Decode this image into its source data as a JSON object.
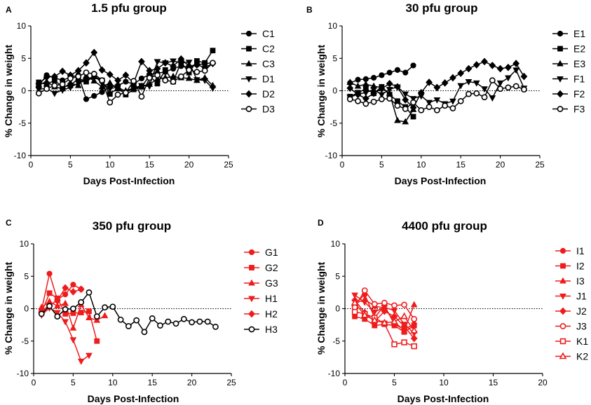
{
  "chart_data": [
    {
      "type": "line",
      "panel": "A",
      "title": "1.5 pfu group",
      "xlabel": "Days Post-Infection",
      "ylabel": "% Change in weight",
      "xlim": [
        0,
        25
      ],
      "ylim": [
        -10,
        10
      ],
      "xticks": [
        "0",
        "5",
        "10",
        "15",
        "20",
        "25"
      ],
      "yticks": [
        "-10",
        "-5",
        "0",
        "5",
        "10"
      ],
      "series": [
        {
          "name": "C1",
          "color": "#000000",
          "marker": "circle-filled",
          "x": [
            1,
            2,
            3,
            4,
            5,
            6,
            7,
            8,
            9,
            10,
            11,
            12,
            13,
            14,
            15,
            16,
            17,
            18,
            19,
            20,
            21,
            22,
            23
          ],
          "y": [
            0.8,
            2.4,
            2.0,
            1.6,
            2.1,
            2.4,
            -1.3,
            -0.8,
            -0.2,
            0.6,
            0.8,
            1.4,
            1.0,
            1.9,
            2.5,
            2.7,
            2.9,
            3.4,
            3.8,
            3.6,
            4.0,
            4.2,
            4.3
          ]
        },
        {
          "name": "C2",
          "color": "#000000",
          "marker": "square-filled",
          "x": [
            1,
            2,
            3,
            4,
            5,
            6,
            7,
            8,
            9,
            10,
            11,
            12,
            13,
            14,
            15,
            16,
            17,
            18,
            19,
            20,
            21,
            22,
            23
          ],
          "y": [
            1.3,
            1.0,
            1.6,
            0.6,
            0.8,
            1.9,
            1.4,
            2.2,
            1.6,
            -0.5,
            0.4,
            -0.6,
            0.2,
            0.6,
            2.3,
            1.1,
            3.2,
            1.4,
            4.4,
            2.8,
            4.6,
            4.3,
            6.2
          ]
        },
        {
          "name": "C3",
          "color": "#000000",
          "marker": "triangle-up-filled",
          "x": [
            1,
            2,
            3,
            4,
            5,
            6,
            7,
            8,
            9,
            10,
            11,
            12,
            13,
            14,
            15,
            16,
            17,
            18,
            19,
            20,
            21,
            22,
            23
          ],
          "y": [
            0.9,
            1.4,
            0.6,
            0.3,
            1.2,
            0.8,
            2.3,
            1.5,
            0.6,
            1.2,
            0.3,
            0.0,
            0.4,
            0.7,
            1.0,
            1.8,
            2.0,
            2.2,
            2.0,
            1.9,
            1.6,
            2.0,
            0.8
          ]
        },
        {
          "name": "D1",
          "color": "#000000",
          "marker": "triangle-down-filled",
          "x": [
            1,
            2,
            3,
            4,
            5,
            6,
            7,
            8,
            9,
            10,
            11,
            12,
            13,
            14,
            15,
            16,
            17,
            18,
            19,
            20,
            21,
            22,
            23
          ],
          "y": [
            0.2,
            0.4,
            -0.4,
            0.1,
            0.5,
            1.2,
            1.6,
            2.3,
            1.2,
            0.3,
            0.6,
            -0.2,
            0.4,
            0.8,
            0.7,
            4.5,
            4.3,
            4.6,
            4.3,
            4.4,
            1.7,
            1.6,
            0.4
          ]
        },
        {
          "name": "D2",
          "color": "#000000",
          "marker": "diamond-filled",
          "x": [
            1,
            2,
            3,
            4,
            5,
            6,
            7,
            8,
            9,
            10,
            11,
            12,
            13,
            14,
            15,
            16,
            17,
            18,
            19,
            20,
            21,
            22,
            23
          ],
          "y": [
            1.1,
            2.1,
            2.2,
            3.0,
            2.4,
            3.1,
            4.3,
            5.9,
            3.2,
            2.5,
            1.6,
            2.4,
            1.2,
            4.5,
            3.1,
            3.4,
            4.3,
            3.8,
            4.9,
            3.8,
            4.0,
            3.6,
            4.2
          ]
        },
        {
          "name": "D3",
          "color": "#000000",
          "marker": "circle-open",
          "x": [
            1,
            2,
            3,
            4,
            5,
            6,
            7,
            8,
            9,
            10,
            11,
            12,
            13,
            14,
            15,
            16,
            17,
            18,
            19,
            20,
            21,
            22,
            23
          ],
          "y": [
            -0.4,
            0.3,
            0.8,
            1.0,
            1.9,
            2.2,
            2.8,
            2.6,
            1.6,
            -1.8,
            -0.6,
            -0.3,
            1.5,
            -0.9,
            2.0,
            2.4,
            1.6,
            1.4,
            2.2,
            3.2,
            2.9,
            3.1,
            4.3
          ]
        }
      ]
    },
    {
      "type": "line",
      "panel": "B",
      "title": "30 pfu group",
      "xlabel": "Days Post-Infection",
      "ylabel": "% Change in weight",
      "xlim": [
        0,
        25
      ],
      "ylim": [
        -10,
        10
      ],
      "xticks": [
        "0",
        "5",
        "10",
        "15",
        "20",
        "25"
      ],
      "yticks": [
        "-10",
        "-5",
        "0",
        "5",
        "10"
      ],
      "series": [
        {
          "name": "E1",
          "color": "#000000",
          "marker": "circle-filled",
          "x": [
            1,
            2,
            3,
            4,
            5,
            6,
            7,
            8,
            9
          ],
          "y": [
            1.2,
            1.7,
            1.8,
            2.0,
            2.4,
            2.8,
            3.2,
            2.8,
            3.9
          ]
        },
        {
          "name": "E2",
          "color": "#000000",
          "marker": "square-filled",
          "x": [
            1,
            2,
            3,
            4,
            5,
            6,
            7,
            8,
            9
          ],
          "y": [
            -0.9,
            -0.3,
            0.3,
            -0.4,
            0.6,
            -0.6,
            -1.6,
            -2.5,
            -4.0
          ]
        },
        {
          "name": "E3",
          "color": "#000000",
          "marker": "triangle-up-filled",
          "x": [
            1,
            2,
            3,
            4,
            5,
            6,
            7,
            8,
            9
          ],
          "y": [
            1.3,
            0.7,
            1.0,
            0.7,
            0.5,
            -0.4,
            -4.6,
            -4.8,
            -2.9
          ]
        },
        {
          "name": "F1",
          "color": "#000000",
          "marker": "triangle-down-filled",
          "x": [
            1,
            2,
            3,
            4,
            5,
            6,
            7,
            8,
            9,
            10,
            11,
            12,
            13,
            14,
            15,
            16,
            17,
            18,
            19,
            20,
            21,
            22,
            23
          ],
          "y": [
            -1.0,
            -0.5,
            -0.3,
            0.2,
            -0.6,
            0.2,
            0.6,
            -0.5,
            -1.2,
            -0.8,
            -1.8,
            -1.4,
            -2.0,
            -1.6,
            0.8,
            1.4,
            1.2,
            0.3,
            -1.1,
            1.2,
            2.0,
            3.2,
            0.4
          ]
        },
        {
          "name": "F2",
          "color": "#000000",
          "marker": "diamond-filled",
          "x": [
            1,
            2,
            3,
            4,
            5,
            6,
            7,
            8,
            9,
            10,
            11,
            12,
            13,
            14,
            15,
            16,
            17,
            18,
            19,
            20,
            21,
            22,
            23
          ],
          "y": [
            0.4,
            -0.6,
            -1.2,
            -0.4,
            0.3,
            1.1,
            0.6,
            -1.4,
            -2.6,
            -0.3,
            1.3,
            0.5,
            1.2,
            2.0,
            2.7,
            3.4,
            4.0,
            4.5,
            3.9,
            3.4,
            3.6,
            4.2,
            2.2
          ]
        },
        {
          "name": "F3",
          "color": "#000000",
          "marker": "circle-open",
          "x": [
            1,
            2,
            3,
            4,
            5,
            6,
            7,
            8,
            9,
            10,
            11,
            12,
            13,
            14,
            15,
            16,
            17,
            18,
            19,
            20,
            21,
            22,
            23
          ],
          "y": [
            -1.3,
            -1.6,
            -2.0,
            -1.7,
            -1.3,
            -1.2,
            -2.3,
            -2.8,
            -1.8,
            -3.0,
            -2.5,
            -3.0,
            -2.3,
            -2.7,
            -1.6,
            -0.5,
            -0.4,
            -1.0,
            1.6,
            0.3,
            0.5,
            0.7,
            0.2
          ]
        }
      ]
    },
    {
      "type": "line",
      "panel": "C",
      "title": "350 pfu group",
      "xlabel": "Days Post-Infection",
      "ylabel": "% Change in weight",
      "xlim": [
        0,
        25
      ],
      "ylim": [
        -10,
        10
      ],
      "xticks": [
        "0",
        "5",
        "10",
        "15",
        "20",
        "25"
      ],
      "yticks": [
        "-10",
        "-5",
        "0",
        "5",
        "10"
      ],
      "series": [
        {
          "name": "G1",
          "color": "#ee1c1c",
          "marker": "circle-filled",
          "x": [
            1,
            2,
            3,
            4,
            5,
            6
          ],
          "y": [
            -0.2,
            5.4,
            1.4,
            2.2,
            3.7,
            3.0
          ]
        },
        {
          "name": "G2",
          "color": "#ee1c1c",
          "marker": "square-filled",
          "x": [
            1,
            2,
            3,
            4,
            5,
            6,
            7,
            8
          ],
          "y": [
            -0.6,
            2.4,
            1.6,
            -0.8,
            -0.7,
            -0.6,
            -0.4,
            -5.0
          ]
        },
        {
          "name": "G3",
          "color": "#ee1c1c",
          "marker": "triangle-up-filled",
          "x": [
            1,
            2,
            3,
            4,
            5,
            6,
            7,
            8,
            9
          ],
          "y": [
            0.2,
            1.1,
            0.4,
            0.8,
            -3.0,
            0.6,
            -1.4,
            -1.8,
            -1.1
          ]
        },
        {
          "name": "H1",
          "color": "#ee1c1c",
          "marker": "triangle-down-filled",
          "x": [
            1,
            2,
            3,
            4,
            5,
            6,
            7
          ],
          "y": [
            -1.0,
            0.1,
            -0.6,
            -2.0,
            -4.8,
            -8.1,
            -7.2
          ]
        },
        {
          "name": "H2",
          "color": "#ee1c1c",
          "marker": "diamond-filled",
          "x": [
            1,
            2,
            3,
            4,
            5,
            6
          ],
          "y": [
            -0.5,
            0.6,
            1.2,
            3.2,
            2.6,
            3.0
          ]
        },
        {
          "name": "H3",
          "color": "#000000",
          "marker": "circle-open",
          "x": [
            1,
            2,
            3,
            4,
            5,
            6,
            7,
            8,
            9,
            10,
            11,
            12,
            13,
            14,
            15,
            16,
            17,
            18,
            19,
            20,
            21,
            22,
            23
          ],
          "y": [
            -0.8,
            0.4,
            -1.2,
            -0.1,
            0.0,
            1.0,
            2.5,
            -1.2,
            0.2,
            0.3,
            -1.7,
            -2.7,
            -1.8,
            -3.6,
            -1.5,
            -2.6,
            -2.0,
            -2.3,
            -1.6,
            -2.1,
            -2.0,
            -2.0,
            -2.8
          ]
        }
      ]
    },
    {
      "type": "line",
      "panel": "D",
      "title": "4400 pfu group",
      "xlabel": "Days Post-Infection",
      "ylabel": "% Change in weight",
      "xlim": [
        0,
        20
      ],
      "ylim": [
        -10,
        10
      ],
      "xticks": [
        "0",
        "5",
        "10",
        "15",
        "20"
      ],
      "yticks": [
        "-10",
        "-5",
        "0",
        "5",
        "10"
      ],
      "series": [
        {
          "name": "I1",
          "color": "#ee1c1c",
          "marker": "circle-filled",
          "x": [
            1,
            2,
            3,
            4,
            5,
            6,
            7
          ],
          "y": [
            0.6,
            2.2,
            -1.4,
            0.5,
            -2.4,
            -3.2,
            -2.4
          ]
        },
        {
          "name": "I2",
          "color": "#ee1c1c",
          "marker": "square-filled",
          "x": [
            1,
            2,
            3,
            4,
            5,
            6,
            7
          ],
          "y": [
            -1.2,
            -1.6,
            -2.6,
            -2.4,
            -2.6,
            -3.6,
            -2.6
          ]
        },
        {
          "name": "I3",
          "color": "#ee1c1c",
          "marker": "triangle-up-filled",
          "x": [
            1,
            2,
            3,
            4,
            5,
            6,
            7
          ],
          "y": [
            0.8,
            1.4,
            0.4,
            0.1,
            -2.0,
            -3.4,
            0.6
          ]
        },
        {
          "name": "J1",
          "color": "#ee1c1c",
          "marker": "triangle-down-filled",
          "x": [
            1,
            2,
            3,
            4,
            5,
            6,
            7
          ],
          "y": [
            2.1,
            1.0,
            -0.5,
            0.2,
            -0.3,
            -2.4,
            -3.8
          ]
        },
        {
          "name": "J2",
          "color": "#ee1c1c",
          "marker": "diamond-filled",
          "x": [
            1,
            2,
            3,
            4,
            5,
            6,
            7
          ],
          "y": [
            1.3,
            -0.6,
            -2.0,
            -0.4,
            -1.2,
            -2.7,
            -4.6
          ]
        },
        {
          "name": "J3",
          "color": "#ee1c1c",
          "marker": "circle-open",
          "x": [
            1,
            2,
            3,
            4,
            5,
            6,
            7
          ],
          "y": [
            0.2,
            2.8,
            0.7,
            0.9,
            0.5,
            0.6,
            -1.6
          ]
        },
        {
          "name": "K1",
          "color": "#ee1c1c",
          "marker": "square-open",
          "x": [
            1,
            2,
            3,
            4,
            5,
            6,
            7
          ],
          "y": [
            -0.5,
            -0.8,
            -1.4,
            -2.3,
            -5.5,
            -5.2,
            -5.8
          ]
        },
        {
          "name": "K2",
          "color": "#ee1c1c",
          "marker": "triangle-up-open",
          "x": [
            1,
            2,
            3,
            4,
            5,
            6,
            7
          ],
          "y": [
            0.9,
            -1.0,
            -1.8,
            -2.2,
            -2.0,
            -1.2,
            -3.4
          ]
        }
      ]
    }
  ]
}
